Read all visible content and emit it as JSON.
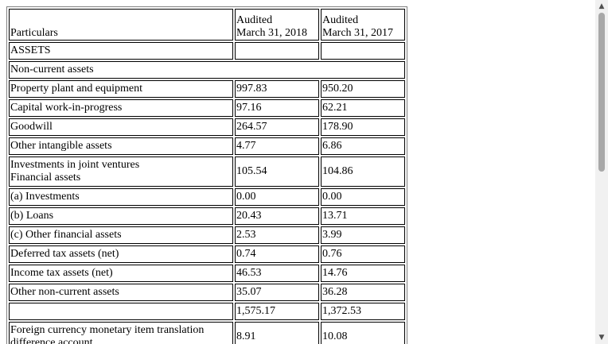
{
  "table": {
    "header": {
      "particulars": "Particulars",
      "col1_line1": "Audited",
      "col1_line2": "March 31, 2018",
      "col2_line1": "Audited",
      "col2_line2": "March 31, 2017"
    },
    "assets_label": "ASSETS",
    "non_current_label": "Non-current assets",
    "rows": [
      {
        "label": "Property plant and equipment",
        "y2018": "997.83",
        "y2017": "950.20"
      },
      {
        "label": "Capital work-in-progress",
        "y2018": "97.16",
        "y2017": "62.21"
      },
      {
        "label": "Goodwill",
        "y2018": "264.57",
        "y2017": "178.90"
      },
      {
        "label": "Other intangible assets",
        "y2018": "4.77",
        "y2017": "6.86"
      },
      {
        "label": "Investments in joint ventures",
        "label2": "Financial assets",
        "y2018": "105.54",
        "y2017": "104.86"
      },
      {
        "label": "(a) Investments",
        "y2018": "0.00",
        "y2017": "0.00"
      },
      {
        "label": "(b) Loans",
        "y2018": "20.43",
        "y2017": "13.71"
      },
      {
        "label": "(c) Other financial assets",
        "y2018": "2.53",
        "y2017": "3.99"
      },
      {
        "label": "Deferred tax assets (net)",
        "y2018": "0.74",
        "y2017": "0.76"
      },
      {
        "label": "Income tax assets (net)",
        "y2018": "46.53",
        "y2017": "14.76"
      },
      {
        "label": "Other non-current assets",
        "y2018": "35.07",
        "y2017": "36.28"
      },
      {
        "label": "",
        "y2018": "1,575.17",
        "y2017": "1,372.53"
      },
      {
        "label": "Foreign currency monetary item translation",
        "label2": "difference account",
        "y2018": "8.91",
        "y2017": "10.08"
      }
    ]
  },
  "scrollbar": {
    "up_icon": "triangle-up",
    "down_icon": "triangle-down"
  }
}
